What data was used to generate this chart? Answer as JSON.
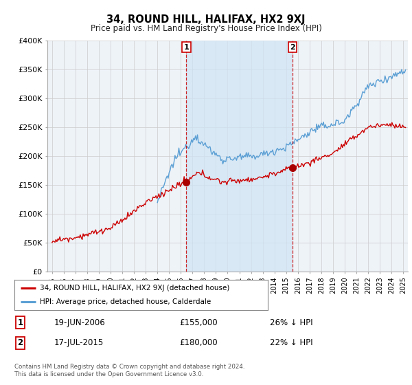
{
  "title": "34, ROUND HILL, HALIFAX, HX2 9XJ",
  "subtitle": "Price paid vs. HM Land Registry's House Price Index (HPI)",
  "legend_line1": "34, ROUND HILL, HALIFAX, HX2 9XJ (detached house)",
  "legend_line2": "HPI: Average price, detached house, Calderdale",
  "sale1_date": "19-JUN-2006",
  "sale1_price": "£155,000",
  "sale1_hpi": "26% ↓ HPI",
  "sale2_date": "17-JUL-2015",
  "sale2_price": "£180,000",
  "sale2_hpi": "22% ↓ HPI",
  "footer": "Contains HM Land Registry data © Crown copyright and database right 2024.\nThis data is licensed under the Open Government Licence v3.0.",
  "hpi_color": "#5b9fd4",
  "price_color": "#cc0000",
  "marker_color": "#aa0000",
  "vline_color": "#cc0000",
  "grid_color": "#cccccc",
  "bg_color": "#eef3f8",
  "shade_color": "#d0e4f5",
  "sale1_year": 2006.47,
  "sale2_year": 2015.54,
  "ylim": [
    0,
    400000
  ],
  "yticks": [
    0,
    50000,
    100000,
    150000,
    200000,
    250000,
    300000,
    350000,
    400000
  ],
  "xmin": 1994.6,
  "xmax": 2025.4
}
